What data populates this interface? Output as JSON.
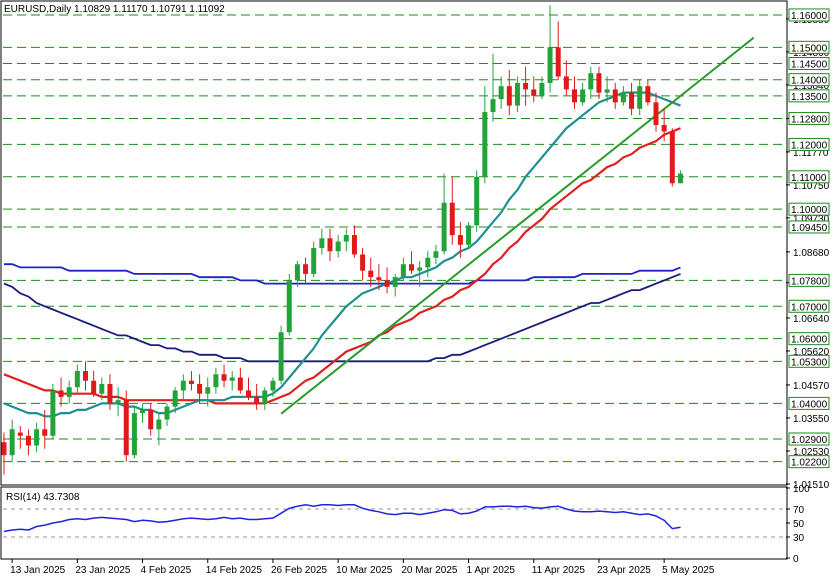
{
  "chart_data": [
    {
      "type": "candlestick",
      "symbol": "EURUSD",
      "timeframe": "Daily",
      "ohlc_header": [
        "1.10829",
        "1.11170",
        "1.10791",
        "1.11092"
      ],
      "ylim": [
        1.0151,
        1.164
      ],
      "y_ticks": [
        "1.01510",
        "1.02530",
        "1.03550",
        "1.04570",
        "1.05620",
        "1.06640",
        "1.07730",
        "1.08680",
        "1.09730",
        "1.10750",
        "1.11770",
        "1.12800",
        "1.13840",
        "1.14860",
        "1.15880"
      ],
      "date_labels": [
        "13 Jan 2025",
        "23 Jan 2025",
        "4 Feb 2025",
        "14 Feb 2025",
        "26 Feb 2025",
        "10 Mar 2025",
        "20 Mar 2025",
        "1 Apr 2025",
        "11 Apr 2025",
        "23 Apr 2025",
        "5 May 2025"
      ],
      "date_label_bar_index": [
        1,
        9,
        17,
        25,
        33,
        41,
        49,
        57,
        65,
        73,
        81
      ],
      "level_lines": [
        "1.16000",
        "1.15000",
        "1.14500",
        "1.14000",
        "1.13500",
        "1.12800",
        "1.12000",
        "1.11000",
        "1.10000",
        "1.09450",
        "1.07800",
        "1.07000",
        "1.06000",
        "1.05300",
        "1.04000",
        "1.02900",
        "1.02200"
      ],
      "candles": [
        [
          1.028,
          1.031,
          1.018,
          1.024
        ],
        [
          1.024,
          1.035,
          1.022,
          1.032
        ],
        [
          1.031,
          1.033,
          1.026,
          1.03
        ],
        [
          1.03,
          1.032,
          1.024,
          1.027
        ],
        [
          1.027,
          1.034,
          1.025,
          1.032
        ],
        [
          1.032,
          1.038,
          1.026,
          1.03
        ],
        [
          1.03,
          1.046,
          1.029,
          1.044
        ],
        [
          1.044,
          1.048,
          1.039,
          1.042
        ],
        [
          1.042,
          1.047,
          1.04,
          1.045
        ],
        [
          1.045,
          1.052,
          1.043,
          1.05
        ],
        [
          1.05,
          1.053,
          1.044,
          1.047
        ],
        [
          1.047,
          1.05,
          1.042,
          1.043
        ],
        [
          1.043,
          1.048,
          1.041,
          1.046
        ],
        [
          1.046,
          1.049,
          1.038,
          1.04
        ],
        [
          1.04,
          1.045,
          1.036,
          1.041
        ],
        [
          1.041,
          1.044,
          1.022,
          1.024
        ],
        [
          1.024,
          1.039,
          1.023,
          1.037
        ],
        [
          1.037,
          1.04,
          1.034,
          1.038
        ],
        [
          1.038,
          1.04,
          1.03,
          1.032
        ],
        [
          1.032,
          1.037,
          1.027,
          1.035
        ],
        [
          1.035,
          1.04,
          1.033,
          1.039
        ],
        [
          1.039,
          1.045,
          1.037,
          1.044
        ],
        [
          1.044,
          1.049,
          1.041,
          1.047
        ],
        [
          1.047,
          1.05,
          1.044,
          1.046
        ],
        [
          1.046,
          1.049,
          1.04,
          1.043
        ],
        [
          1.043,
          1.048,
          1.039,
          1.045
        ],
        [
          1.045,
          1.051,
          1.043,
          1.049
        ],
        [
          1.049,
          1.052,
          1.045,
          1.047
        ],
        [
          1.047,
          1.05,
          1.044,
          1.048
        ],
        [
          1.048,
          1.051,
          1.043,
          1.044
        ],
        [
          1.044,
          1.048,
          1.041,
          1.042
        ],
        [
          1.042,
          1.046,
          1.038,
          1.04
        ],
        [
          1.04,
          1.045,
          1.038,
          1.044
        ],
        [
          1.044,
          1.048,
          1.042,
          1.047
        ],
        [
          1.047,
          1.064,
          1.046,
          1.062
        ],
        [
          1.062,
          1.08,
          1.061,
          1.078
        ],
        [
          1.078,
          1.084,
          1.076,
          1.083
        ],
        [
          1.083,
          1.085,
          1.077,
          1.08
        ],
        [
          1.08,
          1.09,
          1.079,
          1.088
        ],
        [
          1.088,
          1.094,
          1.086,
          1.091
        ],
        [
          1.091,
          1.094,
          1.084,
          1.087
        ],
        [
          1.087,
          1.092,
          1.085,
          1.09
        ],
        [
          1.09,
          1.094,
          1.087,
          1.092
        ],
        [
          1.092,
          1.095,
          1.085,
          1.086
        ],
        [
          1.086,
          1.088,
          1.078,
          1.081
        ],
        [
          1.081,
          1.085,
          1.076,
          1.079
        ],
        [
          1.079,
          1.083,
          1.075,
          1.078
        ],
        [
          1.078,
          1.082,
          1.074,
          1.076
        ],
        [
          1.076,
          1.08,
          1.073,
          1.079
        ],
        [
          1.079,
          1.085,
          1.078,
          1.083
        ],
        [
          1.083,
          1.087,
          1.08,
          1.081
        ],
        [
          1.081,
          1.084,
          1.076,
          1.082
        ],
        [
          1.082,
          1.087,
          1.079,
          1.085
        ],
        [
          1.085,
          1.089,
          1.083,
          1.087
        ],
        [
          1.087,
          1.111,
          1.086,
          1.102
        ],
        [
          1.102,
          1.11,
          1.089,
          1.092
        ],
        [
          1.092,
          1.096,
          1.085,
          1.089
        ],
        [
          1.089,
          1.096,
          1.088,
          1.095
        ],
        [
          1.095,
          1.112,
          1.093,
          1.11
        ],
        [
          1.11,
          1.138,
          1.108,
          1.13
        ],
        [
          1.13,
          1.148,
          1.127,
          1.134
        ],
        [
          1.134,
          1.141,
          1.131,
          1.138
        ],
        [
          1.138,
          1.143,
          1.129,
          1.132
        ],
        [
          1.132,
          1.141,
          1.13,
          1.139
        ],
        [
          1.139,
          1.144,
          1.132,
          1.137
        ],
        [
          1.137,
          1.141,
          1.133,
          1.135
        ],
        [
          1.135,
          1.141,
          1.134,
          1.139
        ],
        [
          1.139,
          1.163,
          1.136,
          1.15
        ],
        [
          1.15,
          1.158,
          1.14,
          1.141
        ],
        [
          1.141,
          1.146,
          1.135,
          1.137
        ],
        [
          1.137,
          1.141,
          1.131,
          1.133
        ],
        [
          1.133,
          1.139,
          1.132,
          1.137
        ],
        [
          1.137,
          1.144,
          1.134,
          1.142
        ],
        [
          1.142,
          1.144,
          1.134,
          1.136
        ],
        [
          1.136,
          1.141,
          1.133,
          1.137
        ],
        [
          1.137,
          1.139,
          1.131,
          1.133
        ],
        [
          1.133,
          1.138,
          1.132,
          1.136
        ],
        [
          1.136,
          1.139,
          1.129,
          1.131
        ],
        [
          1.131,
          1.14,
          1.129,
          1.138
        ],
        [
          1.138,
          1.14,
          1.132,
          1.133
        ],
        [
          1.133,
          1.136,
          1.124,
          1.126
        ],
        [
          1.126,
          1.131,
          1.121,
          1.124
        ],
        [
          1.124,
          1.125,
          1.107,
          1.108
        ],
        [
          1.108,
          1.112,
          1.108,
          1.111
        ]
      ],
      "ma_fast": [
        1.04,
        1.039,
        1.038,
        1.037,
        1.037,
        1.036,
        1.036,
        1.037,
        1.037,
        1.038,
        1.038,
        1.039,
        1.04,
        1.04,
        1.04,
        1.039,
        1.039,
        1.038,
        1.038,
        1.037,
        1.037,
        1.038,
        1.039,
        1.04,
        1.041,
        1.041,
        1.041,
        1.041,
        1.042,
        1.042,
        1.042,
        1.042,
        1.042,
        1.043,
        1.045,
        1.048,
        1.051,
        1.054,
        1.057,
        1.061,
        1.064,
        1.067,
        1.07,
        1.072,
        1.074,
        1.075,
        1.076,
        1.077,
        1.078,
        1.079,
        1.079,
        1.08,
        1.081,
        1.082,
        1.084,
        1.085,
        1.087,
        1.088,
        1.09,
        1.093,
        1.096,
        1.099,
        1.103,
        1.106,
        1.11,
        1.113,
        1.116,
        1.119,
        1.122,
        1.125,
        1.127,
        1.129,
        1.131,
        1.133,
        1.134,
        1.135,
        1.136,
        1.136,
        1.136,
        1.136,
        1.135,
        1.134,
        1.133,
        1.132
      ],
      "ma_mid": [
        1.049,
        1.048,
        1.047,
        1.046,
        1.045,
        1.044,
        1.044,
        1.043,
        1.043,
        1.043,
        1.043,
        1.043,
        1.042,
        1.042,
        1.042,
        1.041,
        1.041,
        1.041,
        1.041,
        1.041,
        1.041,
        1.041,
        1.041,
        1.041,
        1.041,
        1.041,
        1.04,
        1.04,
        1.04,
        1.04,
        1.04,
        1.04,
        1.04,
        1.041,
        1.042,
        1.043,
        1.045,
        1.047,
        1.048,
        1.05,
        1.052,
        1.054,
        1.056,
        1.057,
        1.058,
        1.059,
        1.061,
        1.062,
        1.064,
        1.065,
        1.066,
        1.068,
        1.069,
        1.07,
        1.072,
        1.073,
        1.075,
        1.076,
        1.078,
        1.08,
        1.083,
        1.085,
        1.088,
        1.09,
        1.093,
        1.095,
        1.097,
        1.1,
        1.102,
        1.104,
        1.106,
        1.108,
        1.109,
        1.111,
        1.113,
        1.114,
        1.116,
        1.117,
        1.119,
        1.12,
        1.121,
        1.123,
        1.124,
        1.125
      ],
      "ma_slow": [
        1.077,
        1.076,
        1.074,
        1.073,
        1.071,
        1.07,
        1.069,
        1.068,
        1.067,
        1.066,
        1.065,
        1.064,
        1.063,
        1.062,
        1.061,
        1.061,
        1.06,
        1.059,
        1.058,
        1.058,
        1.057,
        1.057,
        1.056,
        1.056,
        1.055,
        1.055,
        1.055,
        1.054,
        1.054,
        1.054,
        1.053,
        1.053,
        1.053,
        1.053,
        1.053,
        1.053,
        1.053,
        1.053,
        1.053,
        1.053,
        1.053,
        1.053,
        1.053,
        1.053,
        1.053,
        1.053,
        1.053,
        1.053,
        1.053,
        1.053,
        1.053,
        1.053,
        1.053,
        1.054,
        1.054,
        1.055,
        1.055,
        1.056,
        1.057,
        1.058,
        1.059,
        1.06,
        1.061,
        1.062,
        1.063,
        1.064,
        1.065,
        1.066,
        1.067,
        1.068,
        1.069,
        1.07,
        1.071,
        1.071,
        1.072,
        1.073,
        1.074,
        1.075,
        1.075,
        1.076,
        1.077,
        1.078,
        1.079,
        1.08
      ],
      "ma_long": [
        1.083,
        1.083,
        1.082,
        1.082,
        1.082,
        1.082,
        1.082,
        1.082,
        1.081,
        1.081,
        1.081,
        1.081,
        1.081,
        1.081,
        1.081,
        1.081,
        1.08,
        1.08,
        1.08,
        1.08,
        1.08,
        1.08,
        1.08,
        1.08,
        1.079,
        1.079,
        1.079,
        1.079,
        1.079,
        1.078,
        1.078,
        1.078,
        1.077,
        1.077,
        1.077,
        1.077,
        1.077,
        1.077,
        1.077,
        1.077,
        1.077,
        1.077,
        1.077,
        1.077,
        1.077,
        1.077,
        1.077,
        1.077,
        1.077,
        1.077,
        1.077,
        1.077,
        1.077,
        1.077,
        1.077,
        1.077,
        1.077,
        1.077,
        1.078,
        1.078,
        1.078,
        1.078,
        1.078,
        1.078,
        1.078,
        1.079,
        1.079,
        1.079,
        1.079,
        1.079,
        1.079,
        1.08,
        1.08,
        1.08,
        1.08,
        1.08,
        1.08,
        1.08,
        1.081,
        1.081,
        1.081,
        1.081,
        1.081,
        1.082
      ],
      "trendline": {
        "from": [
          34,
          1.0368
        ],
        "to": [
          92,
          1.153
        ]
      }
    },
    {
      "type": "line",
      "title": "RSI(14) 43.7308",
      "ylim": [
        0,
        100
      ],
      "y_ticks": [
        "100",
        "70",
        "50",
        "30",
        "0"
      ],
      "values": [
        38,
        40,
        41,
        40,
        45,
        47,
        50,
        52,
        55,
        56,
        55,
        57,
        58,
        57,
        56,
        55,
        52,
        54,
        53,
        51,
        52,
        54,
        56,
        57,
        56,
        55,
        56,
        58,
        56,
        57,
        55,
        55,
        56,
        57,
        64,
        71,
        74,
        76,
        74,
        76,
        76,
        75,
        76,
        76,
        71,
        68,
        66,
        63,
        62,
        64,
        64,
        62,
        64,
        66,
        69,
        68,
        63,
        64,
        67,
        73,
        73,
        74,
        74,
        73,
        74,
        72,
        71,
        73,
        74,
        70,
        67,
        66,
        66,
        67,
        66,
        65,
        66,
        64,
        62,
        63,
        60,
        54,
        42,
        44
      ],
      "color": "#2222dd"
    }
  ],
  "colors": {
    "bull": "#22a33a",
    "bear": "#e01a1a",
    "level_line": "#1e8a1e",
    "ma_fast": "#1f8f8f",
    "ma_mid": "#e02020",
    "ma_slow": "#1a1a7a",
    "ma_long": "#2020c8",
    "trendline": "#2a9a2a",
    "rsi": "#2222dd",
    "label_box": "#ffffff",
    "label_border": "#1e8a1e"
  }
}
